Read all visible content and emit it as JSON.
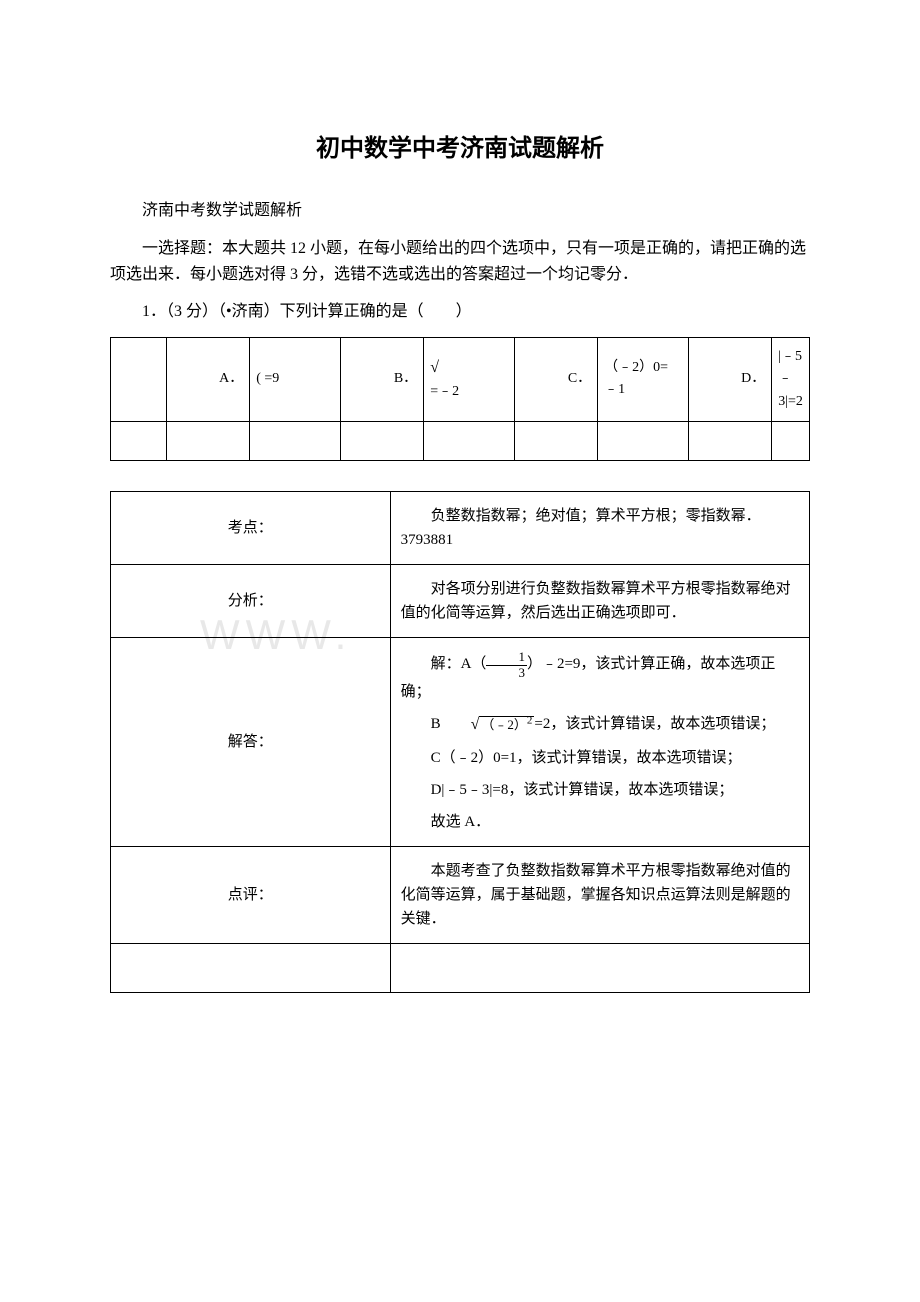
{
  "title": "初中数学中考济南试题解析",
  "subtitle": "济南中考数学试题解析",
  "instruction": "一选择题：本大题共 12 小题，在每小题给出的四个选项中，只有一项是正确的，请把正确的选项选出来．每小题选对得 3 分，选错不选或选出的答案超过一个均记零分．",
  "question": "1．（3 分）（•济南）下列计算正确的是（　　）",
  "options": {
    "a_label": "A．",
    "a_value": "( =9",
    "b_label": "B．",
    "b_value_prefix": "=﹣2",
    "c_label": "C．",
    "c_value": "（﹣2）0=﹣1",
    "d_label": "D．",
    "d_value": "|﹣5﹣3|=2"
  },
  "watermark": "WWW.",
  "analysis": {
    "row1_key": "考点：",
    "row1_val": "负整数指数幂；绝对值；算术平方根；零指数幂．3793881",
    "row2_key": "分析：",
    "row2_val": "对各项分别进行负整数指数幂算术平方根零指数幂绝对值的化简等运算，然后选出正确选项即可．",
    "row3_key": "解答：",
    "row3_p1_prefix": "解：A（",
    "row3_p1_suffix": "）﹣2=9，该式计算正确，故本选项正确；",
    "row3_p2_prefix": "B",
    "row3_p2_suffix": "=2，该式计算错误，故本选项错误；",
    "row3_p3": "C（﹣2）0=1，该式计算错误，故本选项错误；",
    "row3_p4": "D|﹣5﹣3|=8，该式计算错误，故本选项错误；",
    "row3_p5": "故选 A．",
    "row4_key": "点评：",
    "row4_val": "本题考查了负整数指数幂算术平方根零指数幂绝对值的化简等运算，属于基础题，掌握各知识点运算法则是解题的关键．"
  },
  "frac": {
    "num": "1",
    "den": "3"
  },
  "sqrt": {
    "body": "（﹣2）",
    "exp": "2"
  },
  "colors": {
    "text": "#000000",
    "border": "#000000",
    "background": "#ffffff",
    "watermark": "#e8e8e8"
  }
}
